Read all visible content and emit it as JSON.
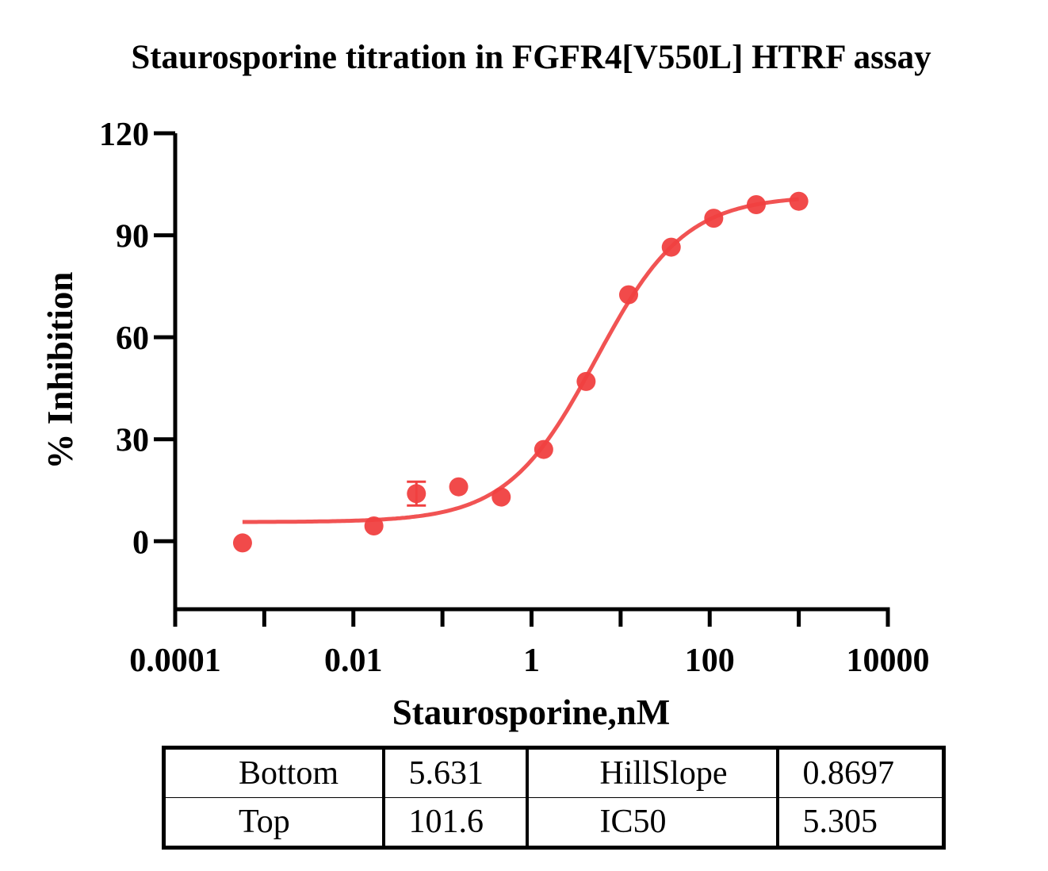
{
  "chart_data": {
    "type": "scatter",
    "title": "Staurosporine titration in FGFR4[V550L] HTRF assay",
    "xlabel": "Staurosporine,nM",
    "ylabel": "% Inhibition",
    "xscale": "log",
    "xlim": [
      0.0001,
      10000
    ],
    "ylim": [
      -20,
      120
    ],
    "x_ticks": [
      0.0001,
      0.01,
      1,
      100,
      10000
    ],
    "x_tick_labels": [
      "0.0001",
      "0.01",
      "1",
      "100",
      "10000"
    ],
    "y_ticks": [
      0,
      30,
      60,
      90,
      120
    ],
    "y_tick_labels": [
      "0",
      "30",
      "60",
      "90",
      "120"
    ],
    "colors": {
      "series": "#f04040",
      "axis": "#000000"
    },
    "series": [
      {
        "x": [
          0.00057,
          0.017,
          0.051,
          0.152,
          0.457,
          1.37,
          4.1,
          12.3,
          37.0,
          111,
          333,
          1000
        ],
        "y": [
          -0.5,
          4.5,
          14,
          16,
          13,
          27,
          47,
          72.5,
          86.5,
          95,
          99,
          100
        ],
        "error": [
          0,
          0,
          3.5,
          0,
          0,
          0,
          0,
          0,
          0,
          0,
          0,
          0
        ]
      }
    ],
    "fit": {
      "model": "four-parameter logistic",
      "bottom": 5.631,
      "top": 101.6,
      "hillslope": 0.8697,
      "ic50": 5.305,
      "x_range": [
        0.00057,
        1000
      ]
    }
  },
  "results_table": {
    "rows": [
      [
        "Bottom",
        "5.631",
        "HillSlope",
        "0.8697"
      ],
      [
        "Top",
        "101.6",
        "IC50",
        "5.305"
      ]
    ]
  }
}
